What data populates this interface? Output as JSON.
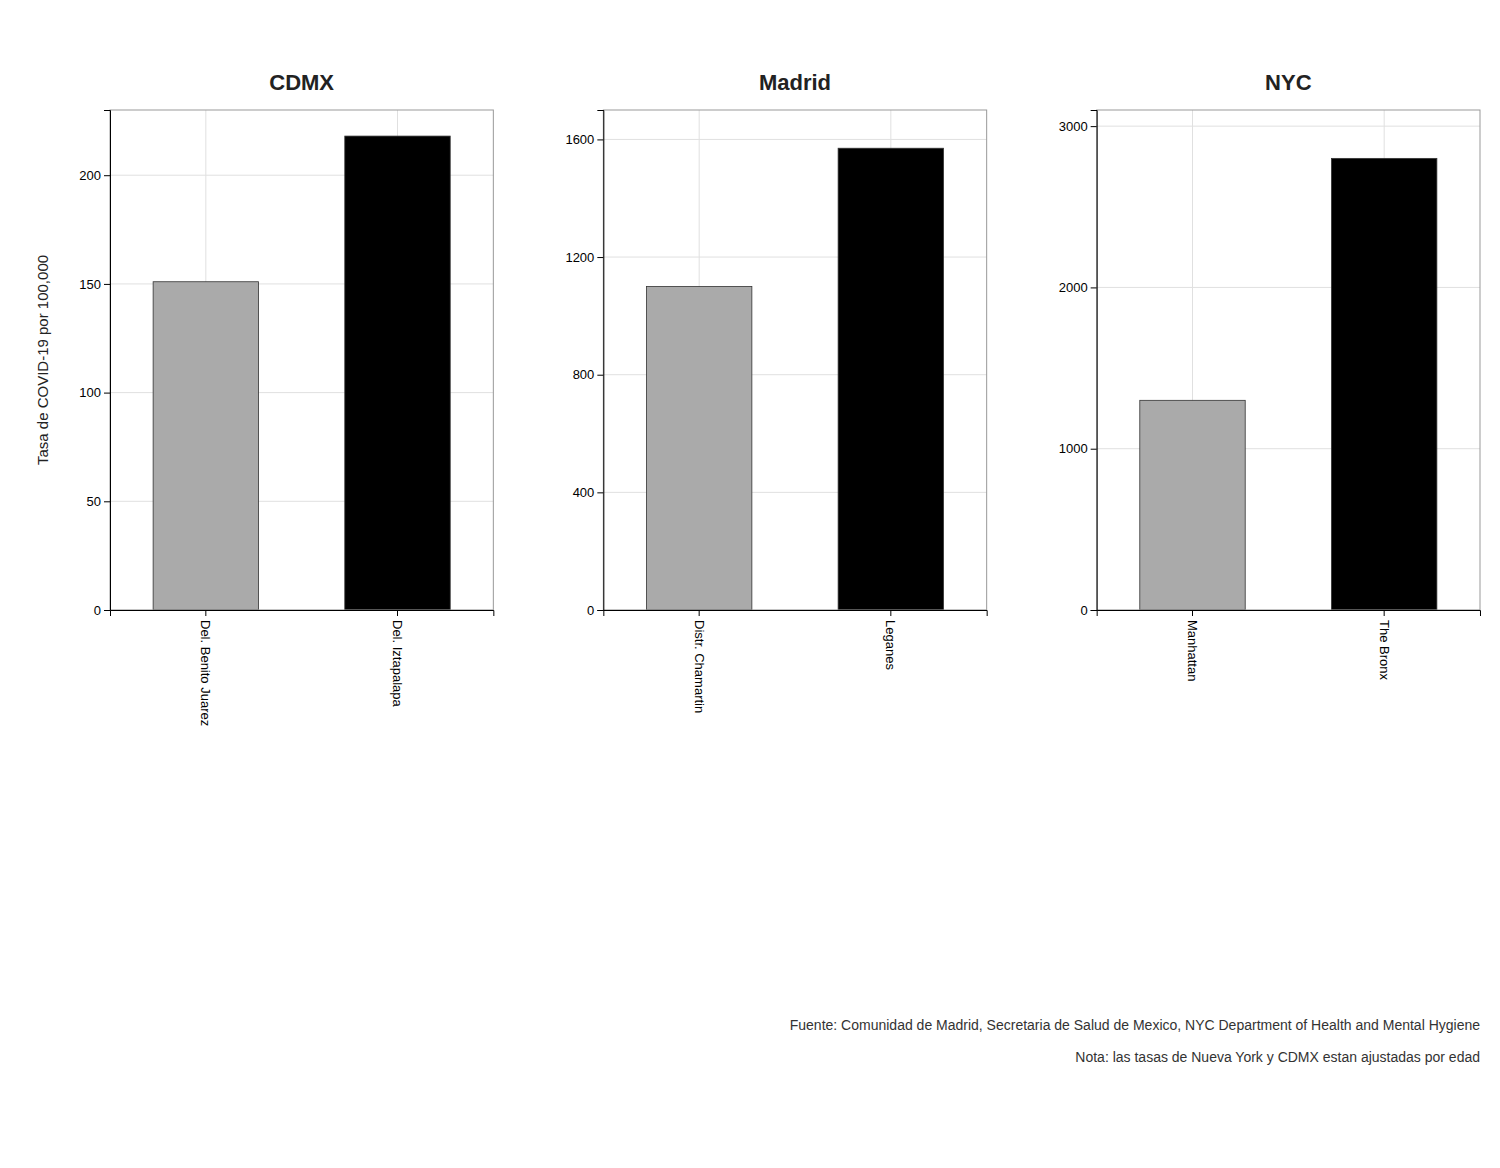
{
  "chart_data": [
    {
      "type": "bar",
      "title": "CDMX",
      "categories": [
        "Del. Benito Juarez",
        "Del. Iztapalapa"
      ],
      "values": [
        151,
        218
      ],
      "colors": [
        "#aaaaaa",
        "#000000"
      ],
      "ylim": [
        0,
        230
      ],
      "yticks": [
        0,
        50,
        100,
        150,
        200
      ],
      "ylabel": "Tasa de COVID-19 por 100,000",
      "grid": true
    },
    {
      "type": "bar",
      "title": "Madrid",
      "categories": [
        "Distr. Chamartin",
        "Leganes"
      ],
      "values": [
        1100,
        1570
      ],
      "colors": [
        "#aaaaaa",
        "#000000"
      ],
      "ylim": [
        0,
        1700
      ],
      "yticks": [
        0,
        400,
        800,
        1200,
        1600
      ],
      "grid": true
    },
    {
      "type": "bar",
      "title": "NYC",
      "categories": [
        "Manhattan",
        "The Bronx"
      ],
      "values": [
        1300,
        2800
      ],
      "colors": [
        "#aaaaaa",
        "#000000"
      ],
      "ylim": [
        0,
        3100
      ],
      "yticks": [
        0,
        1000,
        2000,
        3000
      ],
      "grid": true,
      "annotations": [
        "Fuente: Comunidad de Madrid, Secretaria de Salud de Mexico, NYC Department of Health and Mental Hygiene",
        "Nota: las tasas de Nueva York y CDMX estan ajustadas por edad"
      ]
    }
  ]
}
